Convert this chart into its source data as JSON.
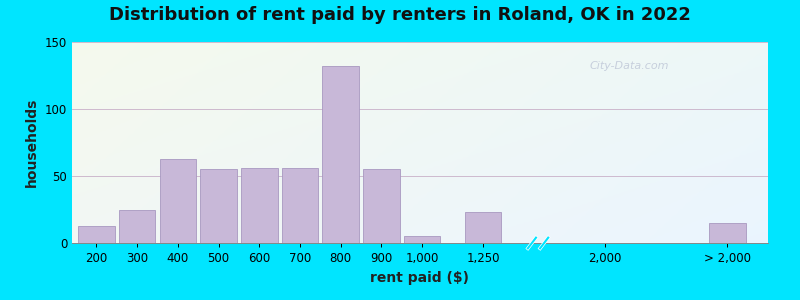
{
  "title": "Distribution of rent paid by renters in Roland, OK in 2022",
  "xlabel": "rent paid ($)",
  "ylabel": "households",
  "bar_color": "#c8b8d8",
  "bar_edge_color": "#a898c0",
  "bg_outer": "#00e5ff",
  "ylim": [
    0,
    150
  ],
  "yticks": [
    0,
    50,
    100,
    150
  ],
  "title_fontsize": 13,
  "axis_label_fontsize": 10,
  "tick_fontsize": 8.5,
  "watermark": "City-Data.com",
  "bar_labels": [
    "200",
    "300",
    "400",
    "500",
    "600",
    "700",
    "800",
    "900",
    "1,000",
    "1,250",
    "",
    "2,000",
    "",
    "> 2,000"
  ],
  "bar_heights": [
    13,
    25,
    63,
    55,
    56,
    56,
    132,
    55,
    5,
    23,
    0,
    0,
    0,
    15
  ],
  "bar_widths": [
    0.9,
    0.9,
    0.9,
    0.9,
    0.9,
    0.9,
    0.9,
    0.9,
    0.9,
    0.9,
    0,
    0,
    0,
    0.9
  ],
  "show_bar": [
    1,
    1,
    1,
    1,
    1,
    1,
    1,
    1,
    1,
    1,
    0,
    0,
    0,
    1
  ],
  "x_positions": [
    0,
    1,
    2,
    3,
    4,
    5,
    6,
    7,
    8,
    9.5,
    11,
    12.5,
    14,
    15.5
  ],
  "tick_indices": [
    0,
    1,
    2,
    3,
    4,
    5,
    6,
    7,
    8,
    9.5,
    12.5,
    15.5
  ],
  "tick_labels": [
    "200",
    "300",
    "400",
    "500",
    "600",
    "700",
    "800",
    "900",
    "1,000",
    "1,250",
    "2,000",
    "> 2,000"
  ]
}
